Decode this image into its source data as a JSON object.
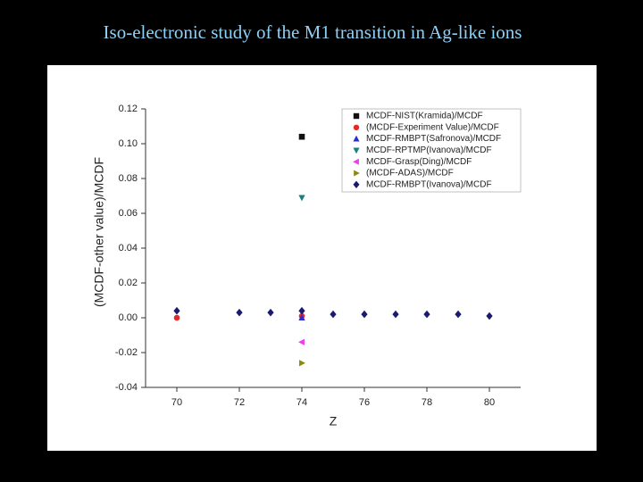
{
  "chart_data": {
    "type": "scatter",
    "title": "Iso-electronic study of the M1 transition in Ag-like ions",
    "xlabel": "Z",
    "ylabel": "(MCDF-other value)/MCDF",
    "xlim": [
      69,
      81
    ],
    "xticks": [
      70,
      72,
      74,
      76,
      78,
      80
    ],
    "ylim": [
      -0.04,
      0.12
    ],
    "yticks": [
      -0.04,
      -0.02,
      {
        "value": 0,
        "label": "0.00"
      },
      0.02,
      0.04,
      0.06,
      0.08,
      {
        "value": 0.1,
        "label": "0.10"
      },
      0.12
    ],
    "legend": "upper right",
    "series": [
      {
        "name": "MCDF-NIST(Kramida)/MCDF",
        "color": "#111111",
        "marker": "square",
        "x": [
          74
        ],
        "values": [
          0.104
        ]
      },
      {
        "name": "(MCDF-Experiment  Value)/MCDF",
        "color": "#e8272a",
        "marker": "circle",
        "x": [
          70,
          74
        ],
        "values": [
          0.0,
          0.001
        ]
      },
      {
        "name": "MCDF-RMBPT(Safronova)/MCDF",
        "color": "#2b2bd6",
        "marker": "triangle-up",
        "x": [
          74
        ],
        "values": [
          0.0
        ]
      },
      {
        "name": "MCDF-RPTMP(Ivanova)/MCDF",
        "color": "#1a7f7f",
        "marker": "triangle-down",
        "x": [
          74
        ],
        "values": [
          0.069
        ]
      },
      {
        "name": "MCDF-Grasp(Ding)/MCDF",
        "color": "#f03cf0",
        "marker": "triangle-left",
        "x": [
          74
        ],
        "values": [
          -0.014
        ]
      },
      {
        "name": "(MCDF-ADAS)/MCDF",
        "color": "#8a8a12",
        "marker": "triangle-right",
        "x": [
          74
        ],
        "values": [
          -0.026
        ]
      },
      {
        "name": "MCDF-RMBPT(Ivanova)/MCDF",
        "color": "#1a1a70",
        "marker": "diamond",
        "x": [
          70,
          72,
          73,
          74,
          75,
          76,
          77,
          78,
          79,
          80
        ],
        "values": [
          0.004,
          0.003,
          0.003,
          0.004,
          0.002,
          0.002,
          0.002,
          0.002,
          0.002,
          0.001
        ]
      }
    ]
  }
}
